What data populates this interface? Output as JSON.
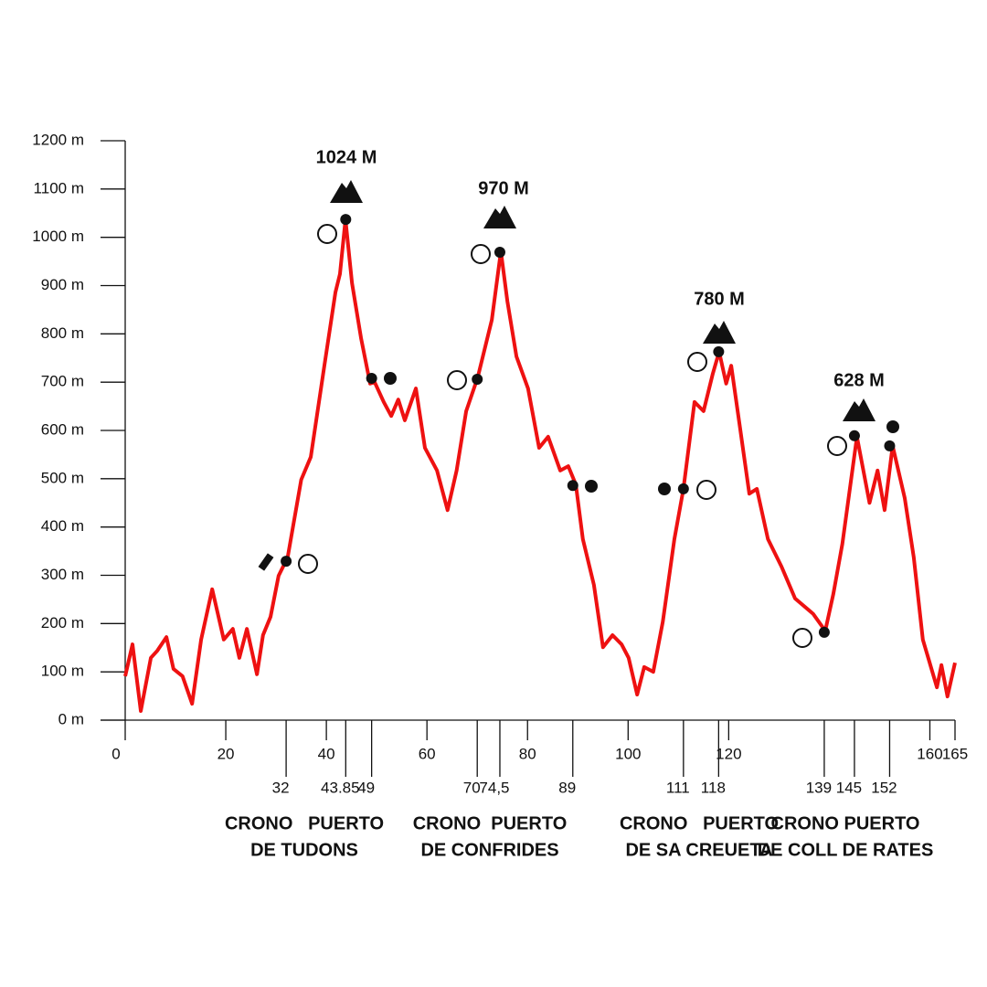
{
  "chart_data": {
    "type": "line",
    "x": [
      0,
      1.45,
      3.1,
      5.1,
      6.4,
      8.2,
      9.6,
      11.4,
      13.3,
      15.1,
      17.3,
      19.6,
      21.4,
      22.7,
      24.2,
      26.2,
      27.4,
      28.9,
      30.5,
      32.3,
      35,
      36.9,
      39.6,
      41.8,
      42.7,
      43.8,
      45.1,
      46.9,
      48.7,
      49.6,
      51.4,
      52.9,
      54.3,
      55.6,
      57.8,
      59.6,
      62,
      64.1,
      65.9,
      67.8,
      70.1,
      72.9,
      74.7,
      76,
      77.8,
      80.1,
      82.3,
      84.1,
      86.5,
      88.1,
      89.6,
      91,
      93.2,
      95,
      96.9,
      98.7,
      100.1,
      101.8,
      103.2,
      105,
      106.9,
      109.2,
      111,
      113.2,
      115,
      116.8,
      118.1,
      119.5,
      120.5,
      122.3,
      124.1,
      125.6,
      127.8,
      130.5,
      133.2,
      136.8,
      139.2,
      140.8,
      142.6,
      145.5,
      148,
      149.6,
      151,
      152.6,
      155,
      156.8,
      158.6,
      161.4,
      162.3,
      163.5,
      165
    ],
    "series": [
      {
        "color": "#ee1111",
        "values": [
          91,
          157,
          19,
          129,
          144,
          172,
          106,
          91,
          34,
          167,
          271,
          167,
          189,
          129,
          189,
          95,
          176,
          214,
          299,
          337,
          498,
          545,
          734,
          886,
          924,
          1037,
          905,
          791,
          697,
          700,
          659,
          630,
          664,
          621,
          687,
          564,
          517,
          435,
          517,
          640,
          710,
          829,
          971,
          867,
          753,
          687,
          564,
          587,
          517,
          526,
          488,
          375,
          280,
          151,
          176,
          157,
          129,
          53,
          110,
          100,
          204,
          375,
          479,
          659,
          640,
          716,
          763,
          697,
          734,
          602,
          469,
          479,
          375,
          318,
          252,
          220,
          185,
          261,
          365,
          587,
          450,
          517,
          435,
          568,
          460,
          337,
          167,
          68,
          114,
          49,
          119
        ]
      }
    ],
    "markers": {
      "x": [
        32,
        43.85,
        49,
        70,
        74.5,
        89,
        111,
        118,
        139,
        145,
        152
      ],
      "values": [
        329,
        1037,
        708,
        706,
        969,
        486,
        479,
        763,
        182,
        589,
        568
      ],
      "color": "#111111"
    },
    "xlim": [
      0,
      165
    ],
    "ylim": [
      0,
      1200
    ],
    "xticks": [
      0,
      20,
      40,
      60,
      80,
      100,
      120,
      160,
      165
    ],
    "xticks2": [
      32,
      43.85,
      49,
      70,
      {
        "value": 74.5,
        "label": "74,5"
      },
      89,
      111,
      118,
      139,
      145,
      152
    ],
    "yticks": [
      {
        "value": 0,
        "label": "0 m"
      },
      {
        "value": 100,
        "label": "100 m"
      },
      {
        "value": 200,
        "label": "200 m"
      },
      {
        "value": 300,
        "label": "300 m"
      },
      {
        "value": 400,
        "label": "400 m"
      },
      {
        "value": 500,
        "label": "500 m"
      },
      {
        "value": 600,
        "label": "600 m"
      },
      {
        "value": 700,
        "label": "700 m"
      },
      {
        "value": 800,
        "label": "800 m"
      },
      {
        "value": 900,
        "label": "900 m"
      },
      {
        "value": 1000,
        "label": "1000 m"
      },
      {
        "value": 1100,
        "label": "1100 m"
      },
      {
        "value": 1200,
        "label": "1200 m"
      }
    ],
    "annotations": [
      "1024 M",
      "970 M",
      "780 M",
      "628 M"
    ],
    "sections": [
      [
        "CRONO   PUERTO",
        "DE TUDONS"
      ],
      [
        "CRONO  PUERTO",
        "DE CONFRIDES"
      ],
      [
        "CRONO   PUERTO",
        "DE SA CREUETA"
      ],
      [
        "CRONO PUERTO",
        "DE COLL DE RATES"
      ]
    ]
  }
}
